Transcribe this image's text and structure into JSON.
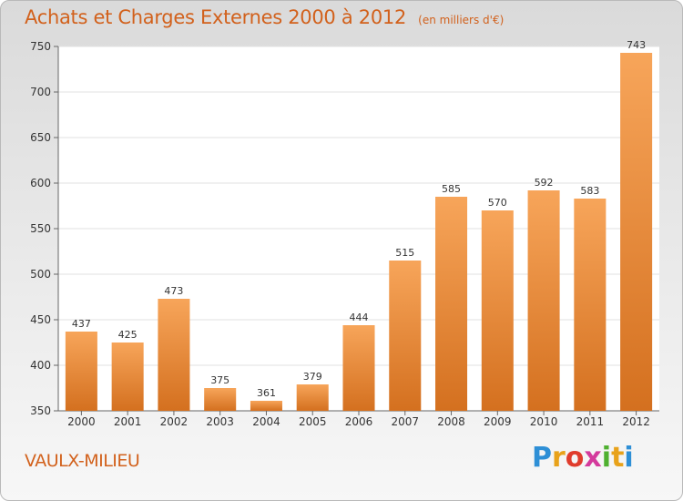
{
  "title": "Achats et Charges Externes 2000 à 2012",
  "subtitle": "(en milliers d'€)",
  "commune": "VAULX-MILIEU",
  "brand": {
    "letters": [
      "P",
      "r",
      "o",
      "x",
      "i",
      "t",
      "i"
    ],
    "colors": [
      "#2e8fd6",
      "#e8a21a",
      "#e03c2c",
      "#d43a9c",
      "#4fb030",
      "#e8a21a",
      "#2e8fd6"
    ]
  },
  "colors": {
    "accent": "#d2611c",
    "bar_top": "#f7a55a",
    "bar_bottom": "#d4701f"
  },
  "chart_data": {
    "type": "bar",
    "title": "Achats et Charges Externes 2000 à 2012",
    "subtitle": "(en milliers d'€)",
    "categories": [
      "2000",
      "2001",
      "2002",
      "2003",
      "2004",
      "2005",
      "2006",
      "2007",
      "2008",
      "2009",
      "2010",
      "2011",
      "2012"
    ],
    "values": [
      437,
      425,
      473,
      375,
      361,
      379,
      444,
      515,
      585,
      570,
      592,
      583,
      743
    ],
    "ylim": [
      350,
      750
    ],
    "yticks": [
      350,
      400,
      450,
      500,
      550,
      600,
      650,
      700,
      750
    ],
    "grid": true,
    "legend": "none"
  }
}
